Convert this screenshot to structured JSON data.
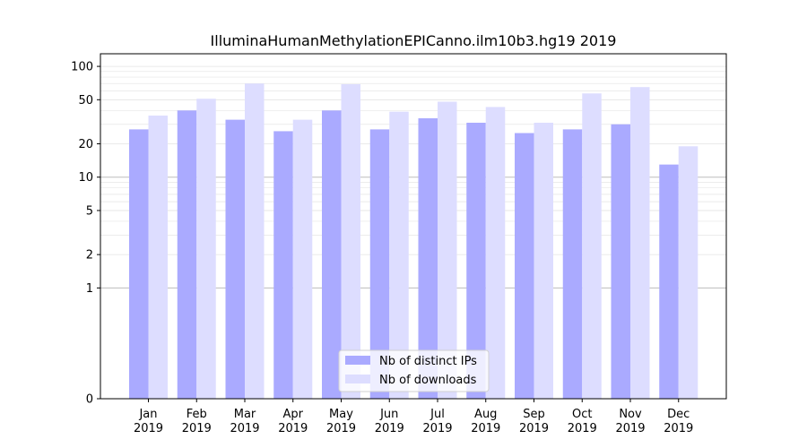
{
  "chart_data": {
    "type": "bar",
    "title": "IlluminaHumanMethylationEPICanno.ilm10b3.hg19 2019",
    "xlabel": "",
    "ylabel": "",
    "yscale": "symlog",
    "categories": [
      "Jan\n2019",
      "Feb\n2019",
      "Mar\n2019",
      "Apr\n2019",
      "May\n2019",
      "Jun\n2019",
      "Jul\n2019",
      "Aug\n2019",
      "Sep\n2019",
      "Oct\n2019",
      "Nov\n2019",
      "Dec\n2019"
    ],
    "series": [
      {
        "name": "Nb of distinct IPs",
        "color": "#aaaaff",
        "values": [
          27,
          40,
          33,
          26,
          40,
          27,
          34,
          31,
          25,
          27,
          30,
          13
        ]
      },
      {
        "name": "Nb of downloads",
        "color": "#ddddff",
        "values": [
          36,
          51,
          70,
          33,
          69,
          39,
          48,
          43,
          31,
          57,
          65,
          19
        ]
      }
    ],
    "yticks": [
      0,
      1,
      2,
      5,
      10,
      20,
      50,
      100
    ],
    "ytick_labels": [
      "0",
      "1",
      "2",
      "5",
      "10",
      "20",
      "50",
      "100"
    ],
    "ylim": [
      0,
      130
    ],
    "grid": true,
    "legend_position": "bottom-center"
  }
}
